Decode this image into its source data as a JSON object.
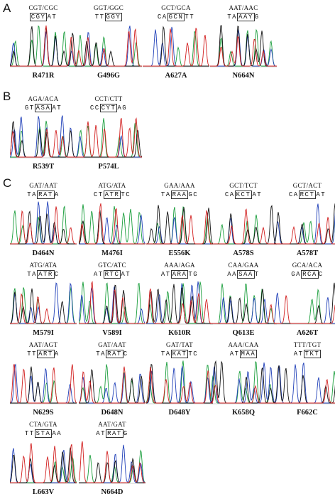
{
  "colors": {
    "A": "#1a9e3c",
    "C": "#1f3fb8",
    "G": "#111111",
    "T": "#d21f1f",
    "N": "#7a4fa0"
  },
  "panels": [
    {
      "label": "A",
      "items": [
        {
          "codon": "CGT/CGC",
          "seq_left": "",
          "seq_box": "CGY",
          "seq_right": "AT",
          "mutation": "R471R"
        },
        {
          "codon": "GGT/GGC",
          "seq_left": "TT",
          "seq_box": "GGY",
          "seq_right": "",
          "mutation": "G496G"
        },
        {
          "codon": "GCT/GCA",
          "seq_left": "CA",
          "seq_box": "GCN",
          "seq_right": "TT",
          "mutation": "A627A"
        },
        {
          "codon": "AAT/AAC",
          "seq_left": "TA",
          "seq_box": "AAY",
          "seq_right": "G",
          "mutation": "N664N"
        }
      ]
    },
    {
      "label": "B",
      "items": [
        {
          "codon": "AGA/ACA",
          "seq_left": "GT",
          "seq_box": "ASA",
          "seq_right": "AT",
          "mutation": "R539T"
        },
        {
          "codon": "CCT/CTT",
          "seq_left": "CC",
          "seq_box": "CYT",
          "seq_right": "AG",
          "mutation": "P574L"
        }
      ]
    },
    {
      "label": "C",
      "items": [
        {
          "codon": "GAT/AAT",
          "seq_left": "TA",
          "seq_box": "RAT",
          "seq_right": "A",
          "mutation": "D464N"
        },
        {
          "codon": "ATG/ATA",
          "seq_left": "CT",
          "seq_box": "ATR",
          "seq_right": "TC",
          "mutation": "M476I"
        },
        {
          "codon": "GAA/AAA",
          "seq_left": "TA",
          "seq_box": "RAA",
          "seq_right": "GC",
          "mutation": "E556K"
        },
        {
          "codon": "GCT/TCT",
          "seq_left": "CA",
          "seq_box": "KCT",
          "seq_right": "AT",
          "mutation": "A578S"
        },
        {
          "codon": "GCT/ACT",
          "seq_left": "CA",
          "seq_box": "RCT",
          "seq_right": "AT",
          "mutation": "A578T"
        },
        {
          "codon": "ATG/ATA",
          "seq_left": "TA",
          "seq_box": "ATR",
          "seq_right": "C",
          "mutation": "M579I"
        },
        {
          "codon": "GTC/ATC",
          "seq_left": "AT",
          "seq_box": "RTC",
          "seq_right": "AT",
          "mutation": "V589I"
        },
        {
          "codon": "AAA/AGA",
          "seq_left": "AT",
          "seq_box": "ARA",
          "seq_right": "TG",
          "mutation": "K610R"
        },
        {
          "codon": "CAA/GAA",
          "seq_left": "AA",
          "seq_box": "SAA",
          "seq_right": "T",
          "mutation": "Q613E"
        },
        {
          "codon": "GCA/ACA",
          "seq_left": "GA",
          "seq_box": "RCA",
          "seq_right": "C",
          "mutation": "A626T"
        },
        {
          "codon": "AAT/AGT",
          "seq_left": "TT",
          "seq_box": "ART",
          "seq_right": "A",
          "mutation": "N629S"
        },
        {
          "codon": "GAT/AAT",
          "seq_left": "TA",
          "seq_box": "RAT",
          "seq_right": "C",
          "mutation": "D648N"
        },
        {
          "codon": "GAT/TAT",
          "seq_left": "TA",
          "seq_box": "KAT",
          "seq_right": "TC",
          "mutation": "D648Y"
        },
        {
          "codon": "AAA/CAA",
          "seq_left": "AT",
          "seq_box": "MAA",
          "seq_right": "",
          "mutation": "K658Q"
        },
        {
          "codon": "TTT/TGT",
          "seq_left": "AT",
          "seq_box": "TKT",
          "seq_right": "",
          "mutation": "F662C"
        },
        {
          "codon": "CTA/GTA",
          "seq_left": "TT",
          "seq_box": "STA",
          "seq_right": "AA",
          "mutation": "L663V"
        },
        {
          "codon": "AAT/GAT",
          "seq_left": "AT",
          "seq_box": "RAT",
          "seq_right": "G",
          "mutation": "N664D"
        }
      ]
    }
  ]
}
